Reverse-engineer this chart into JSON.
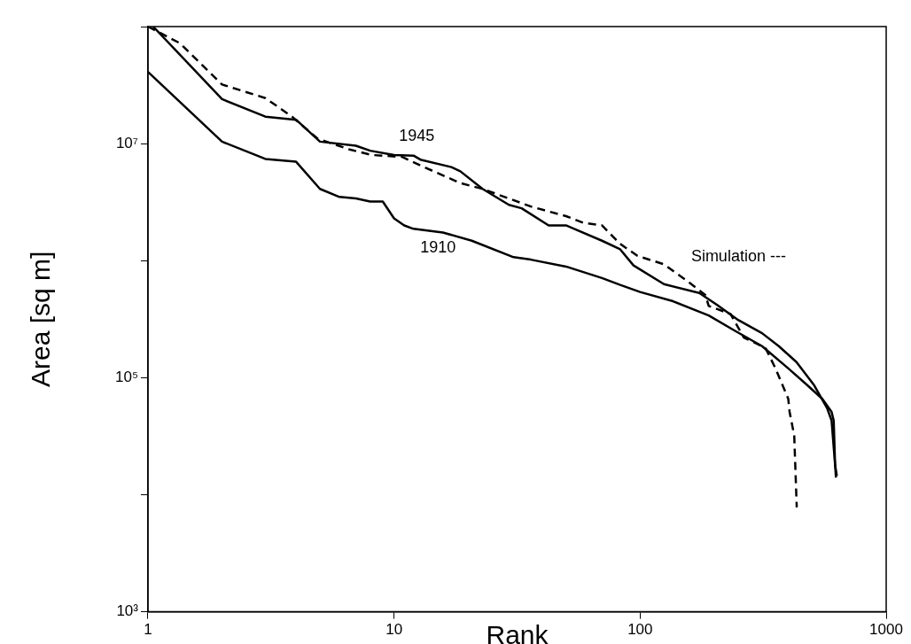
{
  "chart_data": {
    "type": "line",
    "xlabel": "Rank",
    "ylabel": "Area [sq m]",
    "log": "xy",
    "grid": false,
    "marker": "none",
    "xlim": [
      1,
      1000
    ],
    "xticks": [
      1,
      10,
      100,
      1000
    ],
    "ylim": [
      1000,
      100000000
    ],
    "yticks": [
      {
        "value": 1000,
        "label": "10³"
      },
      {
        "value": 10000,
        "label": null
      },
      {
        "value": 100000,
        "label": "10⁵"
      },
      {
        "value": 1000000,
        "label": null
      },
      {
        "value": 10000000,
        "label": "10⁷"
      },
      {
        "value": 100000000,
        "label": null
      }
    ],
    "series": [
      {
        "name": "1910",
        "color": "#000000",
        "line_style": "solid",
        "x": [
          1,
          2,
          3,
          4,
          5,
          6,
          7,
          8,
          9,
          10,
          11,
          12,
          15.8,
          20.7,
          30.6,
          36,
          50,
          70,
          83,
          100,
          136,
          190,
          244,
          313,
          400,
          470,
          550,
          600,
          612,
          620,
          625
        ],
        "values": [
          41000000,
          10400000,
          7400000,
          7000000,
          4100000,
          3500000,
          3400000,
          3200000,
          3200000,
          2300000,
          2000000,
          1870000,
          1740000,
          1480000,
          1070000,
          1020000,
          890000,
          710000,
          620000,
          540000,
          450000,
          340000,
          250000,
          186000,
          120000,
          89000,
          66000,
          51000,
          43000,
          18000,
          14000
        ]
      },
      {
        "name": "1945",
        "color": "#000000",
        "line_style": "solid",
        "x": [
          1.05,
          2,
          3,
          4,
          5,
          7,
          8,
          10,
          12,
          12.8,
          17.1,
          18.6,
          22.9,
          29.3,
          33,
          42.5,
          50,
          70,
          83,
          94,
          125,
          174,
          205,
          251,
          313,
          366,
          432,
          510,
          575,
          600,
          620,
          630
        ],
        "values": [
          100000000,
          24000000,
          17000000,
          16000000,
          10400000,
          9600000,
          8700000,
          8000000,
          7900000,
          7300000,
          6300000,
          5800000,
          4100000,
          3000000,
          2800000,
          2000000,
          2000000,
          1480000,
          1250000,
          910000,
          630000,
          530000,
          420000,
          310000,
          240000,
          186000,
          136000,
          86000,
          55000,
          43000,
          18000,
          14500
        ]
      },
      {
        "name": "Simulation ---",
        "color": "#000000",
        "line_style": "dashed",
        "x": [
          1,
          1.35,
          2,
          3,
          3.85,
          4.9,
          6.6,
          8.1,
          10.8,
          12.8,
          18.6,
          22.9,
          36,
          50,
          59,
          70,
          83,
          97.5,
          125,
          154,
          184,
          190,
          233,
          264,
          323,
          355,
          400,
          405,
          423,
          433
        ],
        "values": [
          100000000,
          72000000,
          32000000,
          24500000,
          17000000,
          11000000,
          8900000,
          8000000,
          7700000,
          6500000,
          4600000,
          4100000,
          2900000,
          2400000,
          2100000,
          2000000,
          1390000,
          1100000,
          930000,
          680000,
          510000,
          410000,
          350000,
          220000,
          180000,
          120000,
          66000,
          51000,
          32000,
          7800
        ]
      }
    ]
  }
}
